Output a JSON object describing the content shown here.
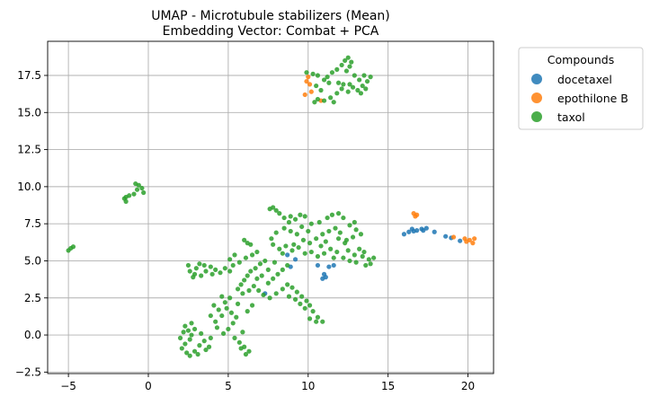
{
  "chart_data": {
    "type": "scatter",
    "title": "UMAP - Microtubule stabilizers (Mean)",
    "subtitle": "Embedding Vector: Combat + PCA",
    "xlabel": "",
    "ylabel": "",
    "xlim": [
      -6.3,
      21.6
    ],
    "ylim": [
      -2.6,
      19.8
    ],
    "xticks": [
      -5,
      0,
      5,
      10,
      15,
      20
    ],
    "yticks": [
      -2.5,
      0.0,
      2.5,
      5.0,
      7.5,
      10.0,
      12.5,
      15.0,
      17.5
    ],
    "grid": true,
    "legend": {
      "title": "Compounds",
      "placement": "outside-top-right"
    },
    "series": [
      {
        "name": "docetaxel",
        "color": "#1f77b4",
        "points": [
          [
            7.3,
            2.8
          ],
          [
            8.7,
            5.4
          ],
          [
            9.2,
            5.1
          ],
          [
            8.9,
            4.6
          ],
          [
            10.6,
            4.7
          ],
          [
            10.9,
            3.8
          ],
          [
            11.1,
            3.9
          ],
          [
            11.3,
            4.6
          ],
          [
            11.6,
            4.7
          ],
          [
            11.0,
            4.1
          ],
          [
            16.0,
            6.8
          ],
          [
            16.3,
            6.95
          ],
          [
            16.5,
            7.15
          ],
          [
            16.8,
            7.05
          ],
          [
            17.1,
            7.15
          ],
          [
            17.4,
            7.2
          ],
          [
            17.9,
            6.95
          ],
          [
            18.6,
            6.65
          ],
          [
            18.95,
            6.55
          ],
          [
            19.5,
            6.35
          ],
          [
            16.6,
            7.0
          ],
          [
            17.2,
            7.05
          ]
        ]
      },
      {
        "name": "epothilone B",
        "color": "#ff7f0e",
        "points": [
          [
            9.9,
            17.1
          ],
          [
            10.1,
            16.9
          ],
          [
            10.2,
            16.4
          ],
          [
            9.8,
            16.2
          ],
          [
            10.0,
            17.4
          ],
          [
            10.8,
            15.8
          ],
          [
            16.6,
            8.2
          ],
          [
            16.8,
            8.1
          ],
          [
            16.7,
            8.0
          ],
          [
            19.1,
            6.6
          ],
          [
            19.8,
            6.5
          ],
          [
            20.1,
            6.4
          ],
          [
            20.3,
            6.2
          ],
          [
            20.4,
            6.5
          ],
          [
            19.9,
            6.3
          ]
        ]
      },
      {
        "name": "taxol",
        "color": "#2ca02c",
        "points": [
          [
            -5.0,
            5.7
          ],
          [
            -4.85,
            5.85
          ],
          [
            -4.7,
            5.95
          ],
          [
            -1.5,
            9.2
          ],
          [
            -1.4,
            9.0
          ],
          [
            -1.2,
            9.4
          ],
          [
            -0.9,
            9.5
          ],
          [
            -0.7,
            9.8
          ],
          [
            -0.6,
            10.1
          ],
          [
            -0.4,
            9.9
          ],
          [
            -0.3,
            9.6
          ],
          [
            -0.8,
            10.2
          ],
          [
            -1.4,
            9.3
          ],
          [
            9.9,
            17.7
          ],
          [
            10.3,
            17.6
          ],
          [
            10.6,
            17.5
          ],
          [
            11.0,
            17.2
          ],
          [
            11.2,
            17.4
          ],
          [
            11.5,
            17.7
          ],
          [
            11.8,
            17.9
          ],
          [
            12.1,
            18.2
          ],
          [
            12.3,
            18.5
          ],
          [
            12.5,
            18.7
          ],
          [
            12.7,
            18.4
          ],
          [
            12.6,
            18.1
          ],
          [
            12.4,
            17.8
          ],
          [
            12.9,
            17.5
          ],
          [
            13.2,
            17.2
          ],
          [
            13.5,
            17.5
          ],
          [
            13.7,
            17.1
          ],
          [
            13.9,
            17.4
          ],
          [
            13.4,
            16.8
          ],
          [
            13.1,
            16.5
          ],
          [
            12.8,
            16.7
          ],
          [
            12.5,
            16.4
          ],
          [
            12.1,
            16.6
          ],
          [
            11.8,
            16.3
          ],
          [
            11.4,
            16.0
          ],
          [
            11.0,
            15.8
          ],
          [
            10.6,
            15.9
          ],
          [
            10.4,
            15.7
          ],
          [
            11.6,
            15.7
          ],
          [
            12.2,
            16.9
          ],
          [
            10.8,
            16.5
          ],
          [
            11.3,
            17.0
          ],
          [
            13.3,
            16.3
          ],
          [
            13.6,
            16.6
          ],
          [
            11.9,
            17.0
          ],
          [
            12.6,
            16.9
          ],
          [
            10.5,
            16.8
          ],
          [
            7.6,
            8.5
          ],
          [
            7.8,
            8.6
          ],
          [
            8.0,
            8.4
          ],
          [
            8.2,
            8.2
          ],
          [
            8.5,
            7.9
          ],
          [
            8.9,
            8.0
          ],
          [
            9.2,
            7.8
          ],
          [
            9.5,
            8.1
          ],
          [
            9.8,
            8.0
          ],
          [
            10.2,
            7.5
          ],
          [
            10.7,
            7.6
          ],
          [
            11.2,
            7.9
          ],
          [
            11.5,
            8.1
          ],
          [
            11.9,
            8.2
          ],
          [
            12.2,
            7.9
          ],
          [
            12.6,
            7.4
          ],
          [
            13.0,
            7.1
          ],
          [
            13.3,
            6.8
          ],
          [
            12.8,
            6.6
          ],
          [
            12.4,
            6.4
          ],
          [
            12.0,
            6.9
          ],
          [
            11.7,
            7.2
          ],
          [
            11.3,
            7.0
          ],
          [
            10.9,
            6.8
          ],
          [
            10.5,
            6.5
          ],
          [
            10.1,
            6.2
          ],
          [
            9.7,
            6.4
          ],
          [
            9.3,
            6.8
          ],
          [
            8.9,
            7.0
          ],
          [
            8.5,
            7.2
          ],
          [
            8.0,
            6.9
          ],
          [
            7.7,
            6.5
          ],
          [
            7.8,
            6.1
          ],
          [
            8.2,
            5.8
          ],
          [
            8.6,
            6.0
          ],
          [
            9.0,
            5.7
          ],
          [
            9.4,
            5.9
          ],
          [
            9.8,
            5.5
          ],
          [
            10.2,
            5.6
          ],
          [
            10.6,
            5.3
          ],
          [
            11.0,
            5.5
          ],
          [
            11.4,
            5.8
          ],
          [
            11.8,
            5.6
          ],
          [
            12.2,
            5.2
          ],
          [
            12.6,
            5.0
          ],
          [
            13.0,
            4.9
          ],
          [
            13.4,
            5.3
          ],
          [
            13.8,
            5.1
          ],
          [
            14.1,
            5.2
          ],
          [
            13.9,
            4.8
          ],
          [
            13.5,
            5.6
          ],
          [
            13.2,
            5.8
          ],
          [
            12.9,
            5.4
          ],
          [
            12.5,
            5.7
          ],
          [
            12.3,
            6.2
          ],
          [
            11.9,
            6.5
          ],
          [
            7.3,
            5.0
          ],
          [
            7.0,
            4.8
          ],
          [
            6.7,
            4.5
          ],
          [
            6.4,
            4.3
          ],
          [
            6.2,
            4.0
          ],
          [
            6.0,
            3.7
          ],
          [
            5.8,
            3.4
          ],
          [
            5.6,
            3.1
          ],
          [
            5.9,
            2.8
          ],
          [
            6.3,
            3.0
          ],
          [
            6.6,
            3.3
          ],
          [
            6.9,
            3.0
          ],
          [
            7.2,
            2.7
          ],
          [
            7.6,
            2.5
          ],
          [
            8.0,
            2.8
          ],
          [
            8.4,
            3.1
          ],
          [
            8.7,
            3.4
          ],
          [
            9.0,
            3.2
          ],
          [
            9.3,
            2.9
          ],
          [
            9.6,
            2.6
          ],
          [
            9.9,
            2.3
          ],
          [
            10.1,
            2.0
          ],
          [
            9.8,
            1.8
          ],
          [
            9.5,
            2.1
          ],
          [
            9.2,
            2.4
          ],
          [
            8.8,
            2.6
          ],
          [
            7.5,
            3.5
          ],
          [
            7.8,
            3.8
          ],
          [
            8.1,
            4.1
          ],
          [
            8.4,
            4.4
          ],
          [
            8.7,
            4.7
          ],
          [
            7.9,
            4.9
          ],
          [
            7.5,
            4.4
          ],
          [
            7.1,
            4.0
          ],
          [
            6.8,
            3.8
          ],
          [
            5.4,
            5.4
          ],
          [
            5.1,
            5.1
          ],
          [
            5.3,
            4.7
          ],
          [
            5.7,
            4.9
          ],
          [
            6.1,
            5.2
          ],
          [
            6.5,
            5.4
          ],
          [
            6.8,
            5.6
          ],
          [
            6.2,
            6.2
          ],
          [
            6.0,
            6.4
          ],
          [
            6.4,
            6.1
          ],
          [
            10.3,
            1.6
          ],
          [
            10.6,
            1.2
          ],
          [
            10.9,
            0.9
          ],
          [
            10.5,
            0.9
          ],
          [
            10.1,
            1.1
          ],
          [
            3.0,
            4.5
          ],
          [
            2.6,
            4.3
          ],
          [
            2.5,
            4.7
          ],
          [
            2.9,
            4.1
          ],
          [
            3.3,
            4.0
          ],
          [
            3.6,
            4.3
          ],
          [
            3.9,
            4.6
          ],
          [
            4.2,
            4.4
          ],
          [
            4.5,
            4.2
          ],
          [
            4.8,
            4.5
          ],
          [
            5.1,
            4.3
          ],
          [
            3.2,
            4.8
          ],
          [
            2.8,
            3.9
          ],
          [
            3.5,
            4.7
          ],
          [
            4.0,
            4.1
          ],
          [
            2.3,
            0.6
          ],
          [
            2.5,
            0.3
          ],
          [
            2.7,
            0.0
          ],
          [
            2.9,
            0.4
          ],
          [
            2.6,
            -0.3
          ],
          [
            2.3,
            -0.6
          ],
          [
            2.1,
            -0.9
          ],
          [
            2.4,
            -1.2
          ],
          [
            2.6,
            -1.4
          ],
          [
            2.9,
            -1.1
          ],
          [
            3.2,
            -0.7
          ],
          [
            3.5,
            -0.4
          ],
          [
            3.8,
            -0.8
          ],
          [
            3.9,
            -0.2
          ],
          [
            3.3,
            0.1
          ],
          [
            2.0,
            -0.2
          ],
          [
            2.2,
            0.2
          ],
          [
            2.7,
            0.8
          ],
          [
            3.1,
            -1.3
          ],
          [
            3.6,
            -1.0
          ],
          [
            4.2,
            0.9
          ],
          [
            4.6,
            1.3
          ],
          [
            4.9,
            1.8
          ],
          [
            5.2,
            1.5
          ],
          [
            5.5,
            1.2
          ],
          [
            5.3,
            0.8
          ],
          [
            5.0,
            0.4
          ],
          [
            4.7,
            0.1
          ],
          [
            5.4,
            -0.2
          ],
          [
            5.7,
            -0.5
          ],
          [
            6.0,
            -0.8
          ],
          [
            6.3,
            -1.1
          ],
          [
            6.1,
            -1.3
          ],
          [
            5.8,
            -0.9
          ],
          [
            5.9,
            0.2
          ],
          [
            4.4,
            1.7
          ],
          [
            4.1,
            2.0
          ],
          [
            4.8,
            2.2
          ],
          [
            5.1,
            2.5
          ],
          [
            5.6,
            2.1
          ],
          [
            6.2,
            1.6
          ],
          [
            6.5,
            2.0
          ],
          [
            4.3,
            0.5
          ],
          [
            3.9,
            1.3
          ],
          [
            4.6,
            2.6
          ],
          [
            10.8,
            6.0
          ],
          [
            11.1,
            6.3
          ],
          [
            8.4,
            5.5
          ],
          [
            8.8,
            7.6
          ],
          [
            9.6,
            7.3
          ],
          [
            10.0,
            7.0
          ],
          [
            12.9,
            7.6
          ],
          [
            13.6,
            4.7
          ],
          [
            11.6,
            5.2
          ],
          [
            9.1,
            6.1
          ]
        ]
      }
    ]
  }
}
